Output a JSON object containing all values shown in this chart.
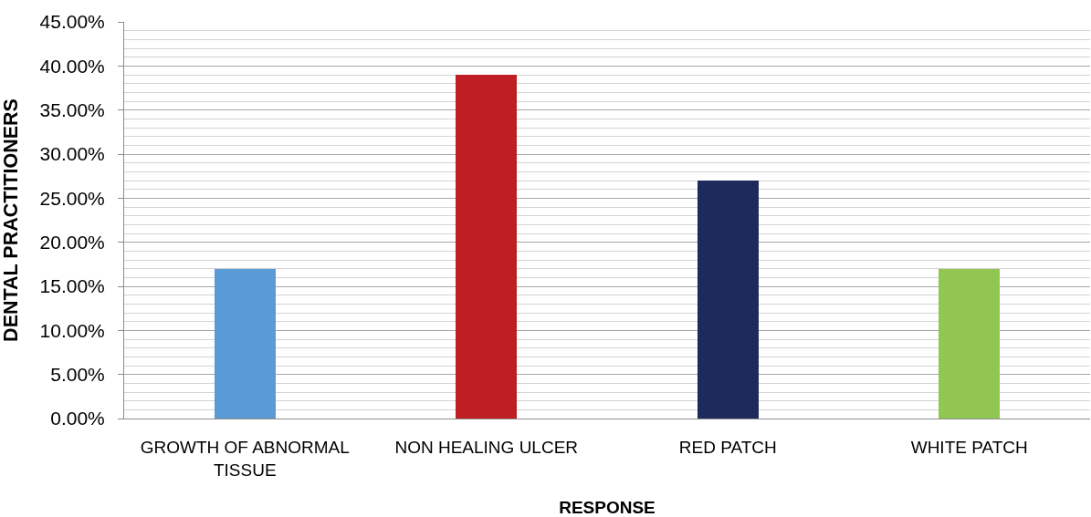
{
  "chart_data": {
    "type": "bar",
    "xlabel": "RESPONSE",
    "ylabel": "DENTAL PRACTITIONERS",
    "categories": [
      "GROWTH OF ABNORMAL TISSUE",
      "NON HEALING ULCER",
      "RED PATCH",
      "WHITE PATCH"
    ],
    "values": [
      17,
      39,
      27,
      17
    ],
    "colors": [
      "#5b9bd5",
      "#be1e24",
      "#1f2a5c",
      "#92c653"
    ],
    "ylim": [
      0,
      45
    ],
    "yticks": [
      {
        "value": 0,
        "label": "0.00%"
      },
      {
        "value": 1,
        "label": null
      },
      {
        "value": 2,
        "label": null
      },
      {
        "value": 3,
        "label": null
      },
      {
        "value": 4,
        "label": null
      },
      {
        "value": 5,
        "label": "5.00%"
      },
      {
        "value": 6,
        "label": null
      },
      {
        "value": 7,
        "label": null
      },
      {
        "value": 8,
        "label": null
      },
      {
        "value": 9,
        "label": null
      },
      {
        "value": 10,
        "label": "10.00%"
      },
      {
        "value": 11,
        "label": null
      },
      {
        "value": 12,
        "label": null
      },
      {
        "value": 13,
        "label": null
      },
      {
        "value": 14,
        "label": null
      },
      {
        "value": 15,
        "label": "15.00%"
      },
      {
        "value": 16,
        "label": null
      },
      {
        "value": 17,
        "label": null
      },
      {
        "value": 18,
        "label": null
      },
      {
        "value": 19,
        "label": null
      },
      {
        "value": 20,
        "label": "20.00%"
      },
      {
        "value": 21,
        "label": null
      },
      {
        "value": 22,
        "label": null
      },
      {
        "value": 23,
        "label": null
      },
      {
        "value": 24,
        "label": null
      },
      {
        "value": 25,
        "label": "25.00%"
      },
      {
        "value": 26,
        "label": null
      },
      {
        "value": 27,
        "label": null
      },
      {
        "value": 28,
        "label": null
      },
      {
        "value": 29,
        "label": null
      },
      {
        "value": 30,
        "label": "30.00%"
      },
      {
        "value": 31,
        "label": null
      },
      {
        "value": 32,
        "label": null
      },
      {
        "value": 33,
        "label": null
      },
      {
        "value": 34,
        "label": null
      },
      {
        "value": 35,
        "label": "35.00%"
      },
      {
        "value": 36,
        "label": null
      },
      {
        "value": 37,
        "label": null
      },
      {
        "value": 38,
        "label": null
      },
      {
        "value": 39,
        "label": null
      },
      {
        "value": 40,
        "label": "40.00%"
      },
      {
        "value": 41,
        "label": null
      },
      {
        "value": 42,
        "label": null
      },
      {
        "value": 43,
        "label": null
      },
      {
        "value": 44,
        "label": null
      },
      {
        "value": 45,
        "label": "45.00%"
      }
    ],
    "grid": "y"
  }
}
